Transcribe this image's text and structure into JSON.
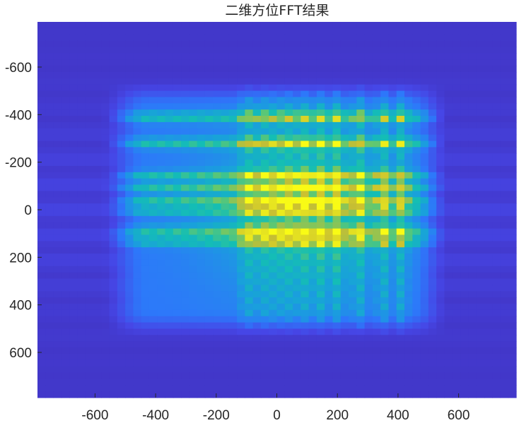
{
  "chart_data": {
    "type": "heatmap",
    "title": "二维方位FFT结果",
    "xlabel": "",
    "ylabel": "",
    "xlim": [
      -790,
      790
    ],
    "ylim": [
      -790,
      790
    ],
    "y_reversed": true,
    "grid": false,
    "colormap": "parula",
    "x_ticks": [
      -600,
      -400,
      -200,
      0,
      200,
      400,
      600
    ],
    "y_ticks": [
      -600,
      -400,
      -200,
      0,
      200,
      400,
      600
    ],
    "x_tick_labels": [
      "-600",
      "-400",
      "-200",
      "0",
      "200",
      "400",
      "600"
    ],
    "y_tick_labels": [
      "-600",
      "-400",
      "-200",
      "0",
      "200",
      "400",
      "600"
    ],
    "grid_size": [
      60,
      60
    ],
    "bright_rows": [
      -390,
      -280,
      -140,
      -90,
      -40,
      0,
      90,
      130
    ],
    "bright_cols": [
      -100,
      -50,
      0,
      50,
      100,
      150,
      200,
      270,
      350,
      410
    ],
    "support_extent": {
      "x": [
        -470,
        480
      ],
      "y": [
        -460,
        460
      ]
    },
    "value_range": [
      0,
      1
    ],
    "colors": {
      "background": "#3d31b8",
      "low": "#3e26a8",
      "mid": "#2fa0d6",
      "high": "#f9fb15"
    }
  }
}
